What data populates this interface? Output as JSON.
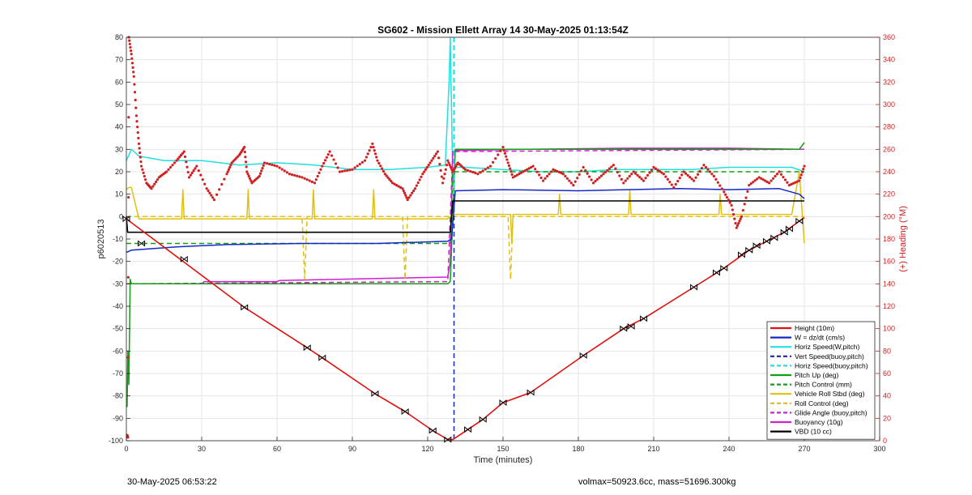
{
  "chart_data": {
    "type": "line",
    "title": "SG602 - Mission Ellett Array 14 30-May-2025 01:13:54Z",
    "xlabel": "Time (minutes)",
    "ylabel": "p6020513",
    "y2label": "(+) Heading (°M)",
    "xlim": [
      0,
      300
    ],
    "ylim": [
      -100,
      80
    ],
    "y2lim": [
      0,
      360
    ],
    "xticks": [
      0,
      30,
      60,
      90,
      120,
      150,
      180,
      210,
      240,
      270,
      300
    ],
    "yticks": [
      80,
      70,
      60,
      50,
      40,
      30,
      20,
      10,
      0,
      -10,
      -20,
      -30,
      -40,
      -50,
      -60,
      -70,
      -80,
      -90,
      -100
    ],
    "y2ticks": [
      360,
      340,
      320,
      300,
      280,
      260,
      240,
      220,
      200,
      180,
      160,
      140,
      120,
      100,
      80,
      60,
      40,
      20,
      0
    ],
    "grid": true,
    "legend_position": "bottom-right",
    "series": [
      {
        "name": "Height (10m)",
        "color": "#e01010",
        "style": "solid",
        "x": [
          0,
          47,
          72,
          78,
          99,
          111,
          122,
          128,
          130,
          136,
          142,
          150,
          161,
          182,
          198,
          206,
          226,
          238,
          248,
          255,
          262,
          268,
          270
        ],
        "y": [
          -1,
          -40.5,
          -58.5,
          -63,
          -79,
          -87,
          -95.5,
          -99.5,
          -99.5,
          -95,
          -90.5,
          -83,
          -78.5,
          -62,
          -50,
          -45.5,
          -31.5,
          -23,
          -15,
          -11,
          -7,
          -2,
          -0.5
        ]
      },
      {
        "name": "W = dz/dt (cm/s)",
        "color": "#1428c8",
        "style": "solid",
        "x": [
          0,
          2,
          20,
          40,
          70,
          100,
          128,
          129.5,
          131,
          150,
          180,
          200,
          220,
          240,
          260,
          268,
          270
        ],
        "y": [
          -16,
          -15,
          -13.5,
          -12.5,
          -12,
          -12,
          -11,
          -10,
          11.5,
          12,
          11.5,
          12,
          12.5,
          12,
          12.5,
          10,
          8
        ]
      },
      {
        "name": "Horiz Speed(W,pitch)",
        "color": "#22e0e0",
        "style": "solid",
        "x": [
          0,
          2,
          5,
          15,
          30,
          45,
          60,
          75,
          90,
          105,
          120,
          127,
          128.5,
          129,
          130,
          131,
          135,
          150,
          165,
          180,
          195,
          210,
          225,
          240,
          255,
          265,
          270
        ],
        "y": [
          25,
          30,
          27,
          25,
          25,
          23,
          24,
          23,
          21,
          21,
          22,
          23,
          60,
          80,
          15,
          22,
          22,
          21,
          20,
          20,
          21,
          21,
          21,
          22,
          22,
          22,
          20
        ]
      },
      {
        "name": "Vert Speed(buoy,pitch)",
        "color": "#1428c8",
        "style": "dashed",
        "x": [
          130.5,
          130.5
        ],
        "y": [
          80,
          -100
        ]
      },
      {
        "name": "Horiz Speed(buoy,pitch)",
        "color": "#22e0e0",
        "style": "dashed",
        "x": [
          130.5,
          130.5
        ],
        "y": [
          80,
          10
        ]
      },
      {
        "name": "Pitch Up (deg)",
        "color": "#10a010",
        "style": "solid",
        "x": [
          0.3,
          0.6,
          1,
          1.5,
          2,
          128,
          129,
          130,
          131,
          268,
          270
        ],
        "y": [
          -85,
          -60,
          -75,
          -28,
          -30,
          -30,
          -29,
          0,
          30,
          30,
          33
        ]
      },
      {
        "name": "Pitch Control (mm)",
        "color": "#10a010",
        "style": "dashed",
        "x": [
          0,
          128,
          129,
          130,
          270
        ],
        "y": [
          -12,
          -12,
          -12,
          20,
          20
        ]
      },
      {
        "name": "Vehicle Roll Stbd (deg)",
        "color": "#e0c010",
        "style": "solid",
        "x": [
          0,
          1,
          2,
          5,
          22,
          22.5,
          23,
          48,
          48.5,
          49,
          74,
          74.5,
          75,
          98,
          98.5,
          99,
          126,
          128,
          130,
          140,
          153,
          153.5,
          154,
          158,
          172,
          172.5,
          173,
          200,
          200.5,
          201,
          236,
          236.5,
          237,
          265,
          268,
          270
        ],
        "y": [
          12,
          13,
          13,
          -1,
          -1,
          12,
          -1,
          -1,
          12,
          -1,
          -1,
          12,
          -1,
          -1,
          12,
          -1,
          -1,
          -1,
          1,
          1,
          1,
          -12,
          1,
          1,
          1,
          10,
          1,
          1,
          12,
          1,
          1,
          10,
          1,
          1,
          20,
          -12
        ]
      },
      {
        "name": "Roll Control (deg)",
        "color": "#e0c010",
        "style": "dashed",
        "x": [
          0,
          70,
          71,
          72,
          110,
          111,
          112,
          128,
          130,
          152,
          153,
          154,
          270
        ],
        "y": [
          0,
          0,
          -28,
          0,
          0,
          -28,
          0,
          0,
          0,
          0,
          -28,
          0,
          0
        ]
      },
      {
        "name": "Glide Angle (buoy,pitch)",
        "color": "#d020d0",
        "style": "dashed",
        "x": [
          0,
          128,
          130,
          270
        ],
        "y": [
          -30,
          -29,
          29,
          30
        ]
      },
      {
        "name": "Buoyancy (10g)",
        "color": "#d020d0",
        "style": "solid",
        "x": [
          0,
          2,
          30,
          31,
          60,
          61,
          128,
          129,
          130,
          131,
          160,
          200,
          240,
          268,
          270
        ],
        "y": [
          -30,
          -30,
          -30,
          -29,
          -29,
          -28.5,
          -27,
          -20,
          29,
          29.5,
          30,
          30.5,
          30.5,
          30,
          30
        ]
      },
      {
        "name": "VBD (10 cc)",
        "color": "#000000",
        "style": "solid",
        "x": [
          0,
          0.5,
          128,
          129,
          130,
          131,
          270
        ],
        "y": [
          0,
          -7,
          -7,
          -7,
          7,
          7,
          7
        ]
      },
      {
        "name": "Heading",
        "color": "#d02020",
        "style": "dots",
        "axis": "right",
        "x": [
          0.3,
          0.6,
          1,
          2,
          3,
          4,
          5,
          6,
          8,
          10,
          13,
          16,
          20,
          23,
          25,
          28,
          32,
          35,
          40,
          42,
          45,
          47,
          48,
          50,
          53,
          55,
          60,
          65,
          70,
          75,
          78,
          81,
          85,
          90,
          95,
          98,
          100,
          103,
          106,
          110,
          112,
          115,
          118,
          121,
          124,
          126,
          128,
          130,
          132,
          135,
          140,
          145,
          150,
          152,
          154,
          158,
          162,
          166,
          170,
          174,
          178,
          182,
          186,
          190,
          194,
          198,
          202,
          206,
          210,
          214,
          218,
          222,
          226,
          230,
          234,
          238,
          241,
          243,
          245,
          248,
          252,
          256,
          260,
          264,
          268,
          270
        ],
        "y": [
          5,
          3,
          360,
          345,
          325,
          290,
          265,
          245,
          230,
          225,
          235,
          240,
          250,
          258,
          235,
          245,
          225,
          215,
          238,
          248,
          255,
          262,
          240,
          230,
          236,
          248,
          245,
          238,
          235,
          230,
          245,
          258,
          240,
          242,
          250,
          265,
          250,
          238,
          230,
          225,
          215,
          225,
          238,
          248,
          258,
          230,
          250,
          240,
          248,
          242,
          238,
          245,
          262,
          248,
          235,
          240,
          245,
          232,
          242,
          238,
          228,
          244,
          230,
          238,
          246,
          230,
          240,
          232,
          244,
          238,
          226,
          240,
          232,
          246,
          236,
          222,
          210,
          190,
          200,
          228,
          235,
          230,
          240,
          228,
          232,
          245
        ]
      },
      {
        "name": "Markers",
        "color": "#000000",
        "style": "markers",
        "x": [
          0,
          6,
          23,
          47,
          72,
          78,
          99,
          111,
          122,
          128,
          136,
          142,
          150,
          161,
          182,
          198,
          201,
          206,
          226,
          235,
          238,
          245,
          248,
          251,
          255,
          258,
          262,
          264,
          268
        ],
        "y": [
          -1,
          -12,
          -19,
          -40.5,
          -58.5,
          -63,
          -79,
          -87,
          -95.5,
          -99.5,
          -95,
          -90.5,
          -83,
          -78.5,
          -62,
          -50,
          -49,
          -45.5,
          -31.5,
          -25,
          -23,
          -17,
          -15,
          -13,
          -11,
          -9.5,
          -7,
          -5.5,
          -2
        ]
      }
    ]
  },
  "footer": {
    "left": "30-May-2025 06:53:22",
    "right": "volmax=50923.6cc, mass=51696.300kg"
  }
}
